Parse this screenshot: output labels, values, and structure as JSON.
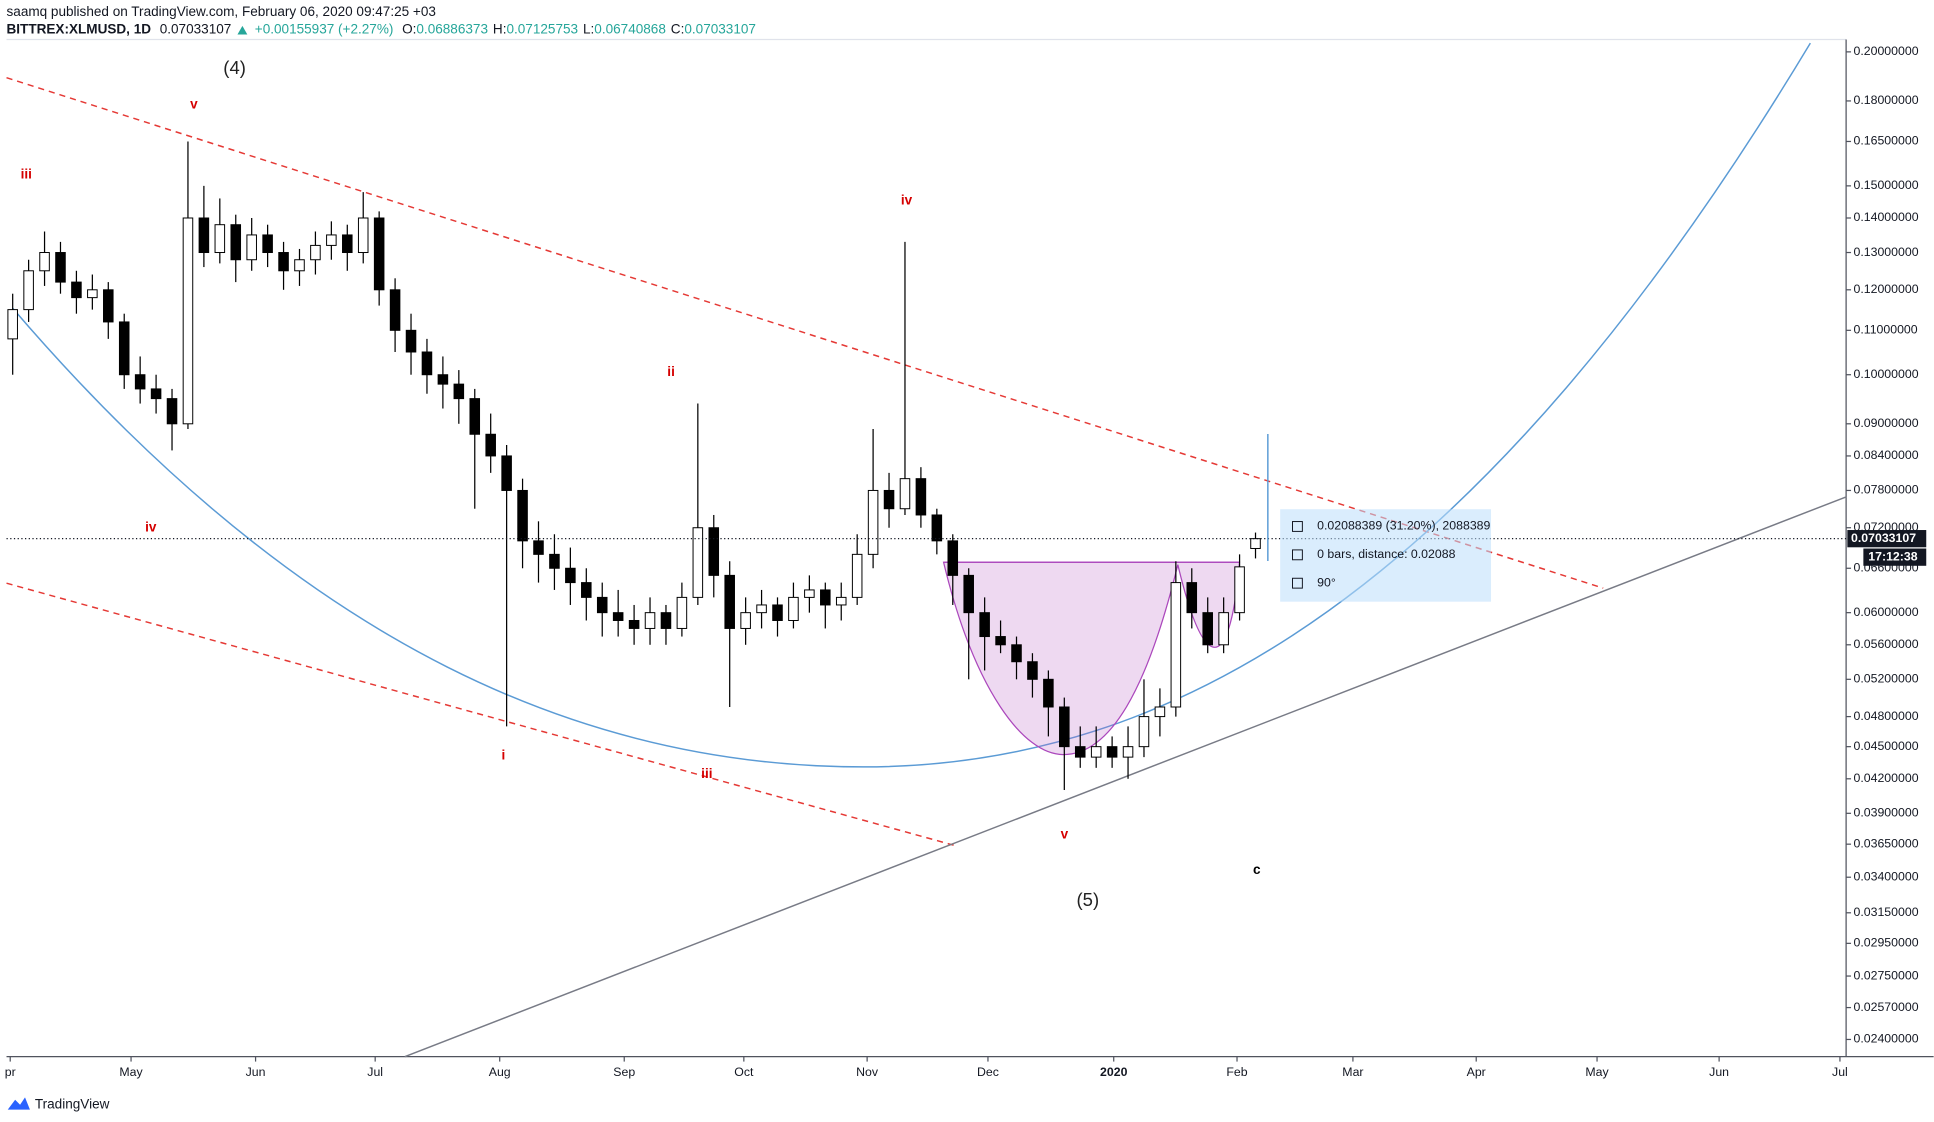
{
  "chart_data": {
    "type": "candlestick",
    "header": {
      "published": "saamq published on TradingView.com, February 06, 2020 09:47:25 +03",
      "symbol": "BITTREX:XLMUSD, 1D",
      "last": "0.07033107",
      "change": "+0.00155937 (+2.27%)",
      "ohlc": [
        {
          "label": "O:",
          "value": "0.06886373"
        },
        {
          "label": "H:",
          "value": "0.07125753"
        },
        {
          "label": "L:",
          "value": "0.06740868"
        },
        {
          "label": "C:",
          "value": "0.07033107"
        }
      ]
    },
    "candles": [
      [
        0.108,
        0.119,
        0.1,
        0.115
      ],
      [
        0.115,
        0.128,
        0.112,
        0.125
      ],
      [
        0.125,
        0.136,
        0.121,
        0.13
      ],
      [
        0.13,
        0.133,
        0.119,
        0.122
      ],
      [
        0.122,
        0.125,
        0.114,
        0.118
      ],
      [
        0.118,
        0.124,
        0.115,
        0.12
      ],
      [
        0.12,
        0.122,
        0.108,
        0.112
      ],
      [
        0.112,
        0.114,
        0.097,
        0.1
      ],
      [
        0.1,
        0.104,
        0.094,
        0.097
      ],
      [
        0.097,
        0.1,
        0.092,
        0.095
      ],
      [
        0.095,
        0.097,
        0.085,
        0.09
      ],
      [
        0.09,
        0.165,
        0.089,
        0.14
      ],
      [
        0.14,
        0.15,
        0.126,
        0.13
      ],
      [
        0.13,
        0.146,
        0.127,
        0.138
      ],
      [
        0.138,
        0.141,
        0.122,
        0.128
      ],
      [
        0.128,
        0.14,
        0.125,
        0.135
      ],
      [
        0.135,
        0.138,
        0.126,
        0.13
      ],
      [
        0.13,
        0.133,
        0.12,
        0.125
      ],
      [
        0.125,
        0.131,
        0.121,
        0.128
      ],
      [
        0.128,
        0.136,
        0.124,
        0.132
      ],
      [
        0.132,
        0.139,
        0.128,
        0.135
      ],
      [
        0.135,
        0.138,
        0.125,
        0.13
      ],
      [
        0.13,
        0.148,
        0.127,
        0.14
      ],
      [
        0.14,
        0.142,
        0.116,
        0.12
      ],
      [
        0.12,
        0.123,
        0.105,
        0.11
      ],
      [
        0.11,
        0.114,
        0.1,
        0.105
      ],
      [
        0.105,
        0.108,
        0.096,
        0.1
      ],
      [
        0.1,
        0.104,
        0.093,
        0.098
      ],
      [
        0.098,
        0.101,
        0.09,
        0.095
      ],
      [
        0.095,
        0.097,
        0.075,
        0.088
      ],
      [
        0.088,
        0.092,
        0.081,
        0.084
      ],
      [
        0.084,
        0.086,
        0.047,
        0.078
      ],
      [
        0.078,
        0.08,
        0.066,
        0.07
      ],
      [
        0.07,
        0.073,
        0.064,
        0.068
      ],
      [
        0.068,
        0.071,
        0.063,
        0.066
      ],
      [
        0.066,
        0.069,
        0.061,
        0.064
      ],
      [
        0.064,
        0.066,
        0.059,
        0.062
      ],
      [
        0.062,
        0.064,
        0.057,
        0.06
      ],
      [
        0.06,
        0.063,
        0.057,
        0.059
      ],
      [
        0.059,
        0.061,
        0.056,
        0.058
      ],
      [
        0.058,
        0.062,
        0.056,
        0.06
      ],
      [
        0.06,
        0.061,
        0.056,
        0.058
      ],
      [
        0.058,
        0.064,
        0.057,
        0.062
      ],
      [
        0.062,
        0.094,
        0.061,
        0.072
      ],
      [
        0.072,
        0.074,
        0.062,
        0.065
      ],
      [
        0.065,
        0.067,
        0.049,
        0.058
      ],
      [
        0.058,
        0.062,
        0.056,
        0.06
      ],
      [
        0.06,
        0.063,
        0.058,
        0.061
      ],
      [
        0.061,
        0.062,
        0.057,
        0.059
      ],
      [
        0.059,
        0.064,
        0.058,
        0.062
      ],
      [
        0.062,
        0.065,
        0.06,
        0.063
      ],
      [
        0.063,
        0.064,
        0.058,
        0.061
      ],
      [
        0.061,
        0.064,
        0.059,
        0.062
      ],
      [
        0.062,
        0.071,
        0.061,
        0.068
      ],
      [
        0.068,
        0.089,
        0.066,
        0.078
      ],
      [
        0.078,
        0.081,
        0.072,
        0.075
      ],
      [
        0.075,
        0.133,
        0.074,
        0.08
      ],
      [
        0.08,
        0.082,
        0.072,
        0.074
      ],
      [
        0.074,
        0.075,
        0.068,
        0.07
      ],
      [
        0.07,
        0.071,
        0.061,
        0.065
      ],
      [
        0.065,
        0.066,
        0.052,
        0.06
      ],
      [
        0.06,
        0.062,
        0.053,
        0.057
      ],
      [
        0.057,
        0.059,
        0.055,
        0.056
      ],
      [
        0.056,
        0.057,
        0.052,
        0.054
      ],
      [
        0.054,
        0.055,
        0.05,
        0.052
      ],
      [
        0.052,
        0.053,
        0.046,
        0.049
      ],
      [
        0.049,
        0.05,
        0.041,
        0.045
      ],
      [
        0.045,
        0.047,
        0.043,
        0.044
      ],
      [
        0.044,
        0.047,
        0.043,
        0.045
      ],
      [
        0.045,
        0.046,
        0.043,
        0.044
      ],
      [
        0.044,
        0.047,
        0.042,
        0.045
      ],
      [
        0.045,
        0.052,
        0.044,
        0.048
      ],
      [
        0.048,
        0.051,
        0.046,
        0.049
      ],
      [
        0.049,
        0.067,
        0.048,
        0.064
      ],
      [
        0.064,
        0.066,
        0.058,
        0.06
      ],
      [
        0.06,
        0.062,
        0.055,
        0.056
      ],
      [
        0.056,
        0.062,
        0.055,
        0.06
      ],
      [
        0.06,
        0.068,
        0.059,
        0.0662
      ],
      [
        0.06886373,
        0.07125753,
        0.06740868,
        0.07033107
      ]
    ],
    "colors": {
      "up": "#ffffff",
      "down": "#000000",
      "outline": "#000000"
    },
    "log_scale": true,
    "ylim": [
      0.02313,
      0.2054
    ],
    "yticks": [
      {
        "value": 0.2,
        "label": "0.20000000"
      },
      {
        "value": 0.18,
        "label": "0.18000000"
      },
      {
        "value": 0.165,
        "label": "0.16500000"
      },
      {
        "value": 0.15,
        "label": "0.15000000"
      },
      {
        "value": 0.14,
        "label": "0.14000000"
      },
      {
        "value": 0.13,
        "label": "0.13000000"
      },
      {
        "value": 0.12,
        "label": "0.12000000"
      },
      {
        "value": 0.11,
        "label": "0.11000000"
      },
      {
        "value": 0.1,
        "label": "0.10000000"
      },
      {
        "value": 0.09,
        "label": "0.09000000"
      },
      {
        "value": 0.084,
        "label": "0.08400000"
      },
      {
        "value": 0.078,
        "label": "0.07800000"
      },
      {
        "value": 0.072,
        "label": "0.07200000"
      },
      {
        "value": 0.066,
        "label": "0.06600000"
      },
      {
        "value": 0.06,
        "label": "0.06000000"
      },
      {
        "value": 0.056,
        "label": "0.05600000"
      },
      {
        "value": 0.052,
        "label": "0.05200000"
      },
      {
        "value": 0.048,
        "label": "0.04800000"
      },
      {
        "value": 0.045,
        "label": "0.04500000"
      },
      {
        "value": 0.042,
        "label": "0.04200000"
      },
      {
        "value": 0.039,
        "label": "0.03900000"
      },
      {
        "value": 0.0365,
        "label": "0.03650000"
      },
      {
        "value": 0.034,
        "label": "0.03400000"
      },
      {
        "value": 0.0315,
        "label": "0.03150000"
      },
      {
        "value": 0.0295,
        "label": "0.02950000"
      },
      {
        "value": 0.0275,
        "label": "0.02750000"
      },
      {
        "value": 0.0257,
        "label": "0.02570000"
      },
      {
        "value": 0.024,
        "label": "0.02400000"
      }
    ],
    "xticks": [
      "pr",
      "May",
      "Jun",
      "Jul",
      "Aug",
      "Sep",
      "Oct",
      "Nov",
      "Dec",
      "2020",
      "Feb",
      "Mar",
      "Apr",
      "May",
      "Jun",
      "Jul"
    ],
    "last_price_label": "0.07033107",
    "countdown": "17:12:38",
    "annotations": [
      {
        "text": "(4)",
        "color": "#222222"
      },
      {
        "text": "v",
        "color": "#d50000"
      },
      {
        "text": "iii",
        "color": "#d50000"
      },
      {
        "text": "iv",
        "color": "#d50000"
      },
      {
        "text": "ii",
        "color": "#d50000"
      },
      {
        "text": "iv",
        "color": "#d50000"
      },
      {
        "text": "i",
        "color": "#d50000"
      },
      {
        "text": "iii",
        "color": "#d50000"
      },
      {
        "text": "v",
        "color": "#d50000"
      },
      {
        "text": "c",
        "color": "#000000"
      },
      {
        "text": "(5)",
        "color": "#222222"
      }
    ],
    "measure": [
      "0.02088389 (31.20%), 2088389",
      "0 bars, distance: 0.02088",
      "90°"
    ]
  },
  "footer": {
    "brand": "TradingView"
  }
}
